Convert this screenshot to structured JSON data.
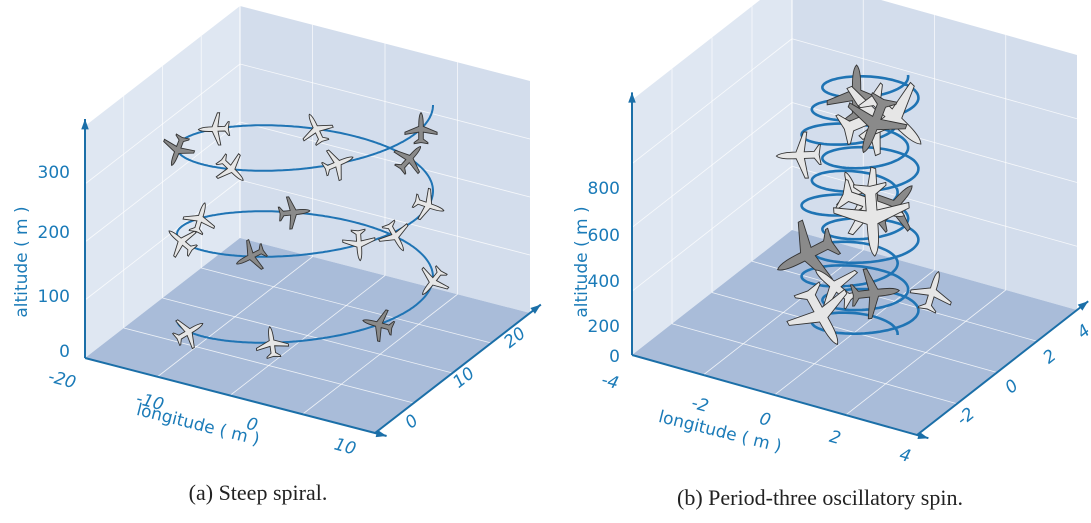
{
  "panels": [
    {
      "altitude_label": "altitude ( m )",
      "longitude_label": "longitude ( m )",
      "altitude_ticks": [
        0,
        100,
        200,
        300
      ],
      "longitude_ticks": [
        -20,
        -10,
        0,
        10
      ],
      "latitude_ticks": [
        0,
        10,
        20
      ],
      "caption": "(a) Steep spiral."
    },
    {
      "altitude_label": "altitude ( m )",
      "longitude_label": "longitude ( m )",
      "altitude_ticks": [
        0,
        200,
        400,
        600,
        800
      ],
      "longitude_ticks": [
        -4,
        -2,
        0,
        2,
        4
      ],
      "latitude_ticks": [
        -2,
        0,
        2,
        4
      ],
      "caption": "(b) Period-three oscillatory spin."
    }
  ]
}
